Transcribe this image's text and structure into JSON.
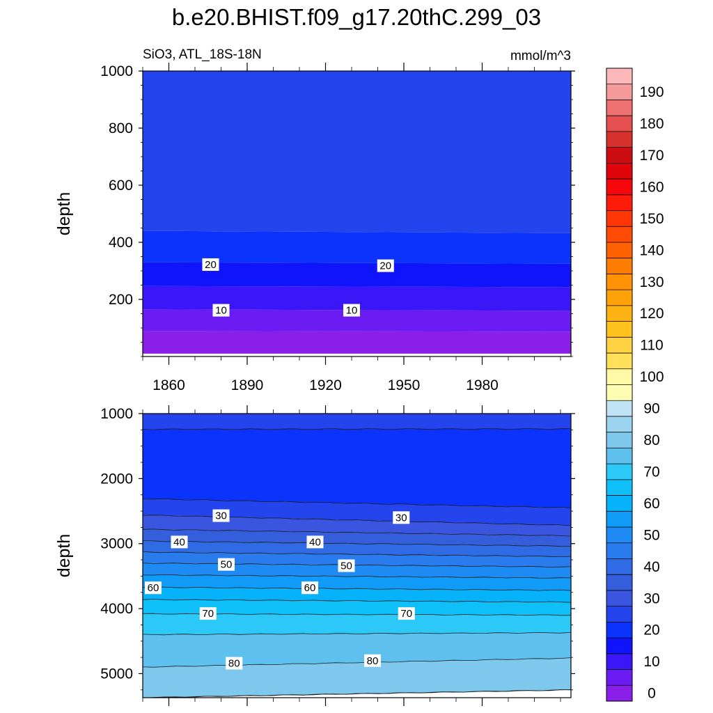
{
  "title": "b.e20.BHIST.f09_g17.20thC.299_03",
  "left_subtitle": "SiO3, ATL_18S-18N",
  "right_subtitle": "mmol/m^3",
  "chart_data": [
    {
      "type": "contour",
      "panel": "upper",
      "ylabel": "depth",
      "ylim": [
        1000,
        0
      ],
      "yticks": [
        "200",
        "400",
        "600",
        "800",
        "1000"
      ],
      "xlim": [
        1850,
        2014
      ],
      "xticks": [
        "1860",
        "1890",
        "1920",
        "1950",
        "1980"
      ],
      "depth_top": 10,
      "bands": [
        {
          "level_from": 0,
          "level_to": 5,
          "depth_top": 10,
          "depth_bottom_start": 90,
          "depth_bottom_end": 87
        },
        {
          "level_from": 5,
          "level_to": 10,
          "depth_top": 90,
          "depth_bottom_start": 165,
          "depth_bottom_end": 160
        },
        {
          "level_from": 10,
          "level_to": 15,
          "depth_top": 165,
          "depth_bottom_start": 247,
          "depth_bottom_end": 243
        },
        {
          "level_from": 15,
          "level_to": 20,
          "depth_top": 247,
          "depth_bottom_start": 330,
          "depth_bottom_end": 325
        },
        {
          "level_from": 20,
          "level_to": 25,
          "depth_top": 330,
          "depth_bottom_start": 440,
          "depth_bottom_end": 432
        },
        {
          "level_from": 25,
          "level_to": 30,
          "depth_top": 440,
          "depth_bottom_start": 1000,
          "depth_bottom_end": 1000
        }
      ],
      "contour_labels": [
        {
          "text": "10",
          "year": 1880,
          "depth": 162
        },
        {
          "text": "10",
          "year": 1930,
          "depth": 162
        },
        {
          "text": "20",
          "year": 1876,
          "depth": 322
        },
        {
          "text": "20",
          "year": 1943,
          "depth": 318
        }
      ]
    },
    {
      "type": "contour",
      "panel": "lower",
      "ylabel": "depth",
      "ylim": [
        1000,
        5370
      ],
      "yticks": [
        "1000",
        "2000",
        "3000",
        "4000",
        "5000"
      ],
      "xlim": [
        1850,
        2014
      ],
      "xticks": [],
      "bands": [
        {
          "level_from": 25,
          "level_to": 30,
          "depth_top": 1000,
          "depth_bottom_start": 1240,
          "depth_bottom_end": 1235
        },
        {
          "level_from": 20,
          "level_to": 25,
          "depth_top": 1240,
          "depth_bottom_start": 2310,
          "depth_bottom_end": 2450
        },
        {
          "level_from": 25,
          "level_to": 30,
          "depth_top": 2310,
          "depth_bottom_start": 2560,
          "depth_bottom_end": 2720
        },
        {
          "level_from": 30,
          "level_to": 35,
          "depth_top": 2560,
          "depth_bottom_start": 2780,
          "depth_bottom_end": 2880
        },
        {
          "level_from": 35,
          "level_to": 40,
          "depth_top": 2780,
          "depth_bottom_start": 2960,
          "depth_bottom_end": 3040
        },
        {
          "level_from": 40,
          "level_to": 45,
          "depth_top": 2960,
          "depth_bottom_start": 3130,
          "depth_bottom_end": 3200
        },
        {
          "level_from": 45,
          "level_to": 50,
          "depth_top": 3130,
          "depth_bottom_start": 3300,
          "depth_bottom_end": 3360
        },
        {
          "level_from": 50,
          "level_to": 55,
          "depth_top": 3300,
          "depth_bottom_start": 3480,
          "depth_bottom_end": 3530
        },
        {
          "level_from": 55,
          "level_to": 60,
          "depth_top": 3480,
          "depth_bottom_start": 3670,
          "depth_bottom_end": 3720
        },
        {
          "level_from": 60,
          "level_to": 65,
          "depth_top": 3670,
          "depth_bottom_start": 3860,
          "depth_bottom_end": 3900
        },
        {
          "level_from": 65,
          "level_to": 70,
          "depth_top": 3860,
          "depth_bottom_start": 4080,
          "depth_bottom_end": 4100
        },
        {
          "level_from": 70,
          "level_to": 75,
          "depth_top": 4080,
          "depth_bottom_start": 4400,
          "depth_bottom_end": 4370
        },
        {
          "level_from": 75,
          "level_to": 80,
          "depth_top": 4400,
          "depth_bottom_start": 4900,
          "depth_bottom_end": 4760
        },
        {
          "level_from": 80,
          "level_to": 85,
          "depth_top": 4900,
          "depth_bottom_start": 5370,
          "depth_bottom_end": 5250
        },
        {
          "level_from": 85,
          "level_to": 90,
          "depth_top": 5370,
          "depth_bottom_start": 5370,
          "depth_bottom_end": 5250
        }
      ],
      "contour_labels": [
        {
          "text": "30",
          "year": 1880,
          "depth": 2570
        },
        {
          "text": "30",
          "year": 1949,
          "depth": 2600
        },
        {
          "text": "40",
          "year": 1864,
          "depth": 2975
        },
        {
          "text": "40",
          "year": 1916,
          "depth": 2975
        },
        {
          "text": "50",
          "year": 1882,
          "depth": 3320
        },
        {
          "text": "50",
          "year": 1928,
          "depth": 3340
        },
        {
          "text": "60",
          "year": 1854,
          "depth": 3680
        },
        {
          "text": "60",
          "year": 1914,
          "depth": 3680
        },
        {
          "text": "70",
          "year": 1875,
          "depth": 4075
        },
        {
          "text": "70",
          "year": 1951,
          "depth": 4075
        },
        {
          "text": "80",
          "year": 1885,
          "depth": 4840
        },
        {
          "text": "80",
          "year": 1938,
          "depth": 4800
        }
      ]
    }
  ],
  "colorbar": {
    "levels": [
      0,
      5,
      10,
      15,
      20,
      25,
      30,
      35,
      40,
      45,
      50,
      55,
      60,
      65,
      70,
      75,
      80,
      85,
      90,
      95,
      100,
      105,
      110,
      115,
      120,
      125,
      130,
      135,
      140,
      145,
      150,
      155,
      160,
      165,
      170,
      175,
      180,
      185,
      190,
      195
    ],
    "colors": [
      "#8a1fe8",
      "#6a1cf2",
      "#3b17f7",
      "#0f14fb",
      "#0b33fb",
      "#2445ee",
      "#3a55e0",
      "#345edc",
      "#2f6be4",
      "#2a7bee",
      "#1e8bf5",
      "#109bf9",
      "#06b3fb",
      "#0fc0f8",
      "#2cc8f7",
      "#5ec0ef",
      "#7dc8ec",
      "#9cd3ef",
      "#c0e4f5",
      "#ffffb3",
      "#fff9a8",
      "#ffe05a",
      "#ffd243",
      "#ffc11e",
      "#ffb312",
      "#ffa20a",
      "#ff9205",
      "#ff7d03",
      "#ff6202",
      "#ff4b04",
      "#ff3606",
      "#ff1c0a",
      "#f6070b",
      "#e0050b",
      "#cc0e12",
      "#d8322f",
      "#e4504f",
      "#ee7272",
      "#f59a9a",
      "#fbb9b9"
    ],
    "tick_labels": [
      "0",
      "10",
      "20",
      "30",
      "40",
      "50",
      "60",
      "70",
      "80",
      "90",
      "100",
      "110",
      "120",
      "130",
      "140",
      "150",
      "160",
      "170",
      "180",
      "190"
    ]
  }
}
